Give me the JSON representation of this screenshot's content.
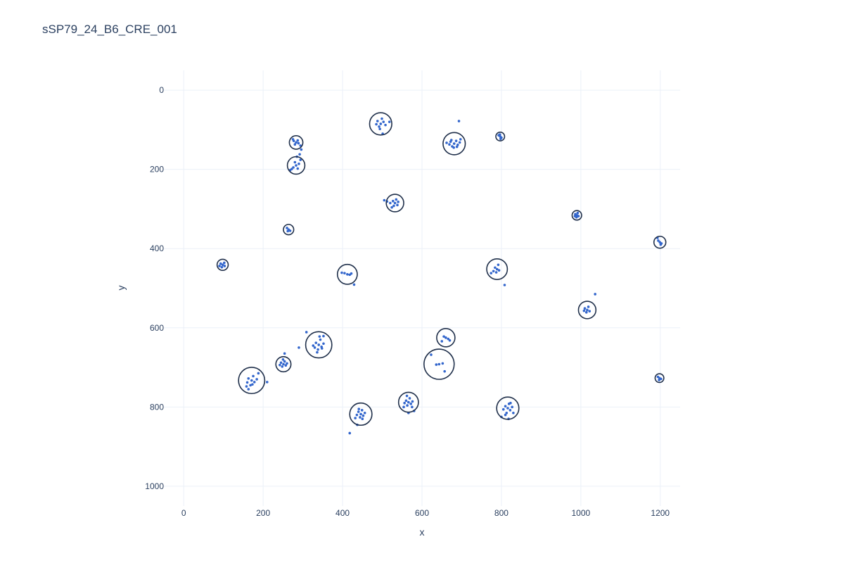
{
  "chart_data": {
    "type": "scatter",
    "title": "sSP79_24_B6_CRE_001",
    "xlabel": "x",
    "ylabel": "y",
    "xlim": [
      -50,
      1250
    ],
    "ylim": [
      1050,
      -50
    ],
    "y_reversed": true,
    "x_ticks": [
      0,
      200,
      400,
      600,
      800,
      1000,
      1200
    ],
    "y_ticks": [
      0,
      200,
      400,
      600,
      800,
      1000
    ],
    "grid": true,
    "legend": "none",
    "point_color": "#3366cc",
    "circle_color": "#1f2f4a",
    "clusters": [
      {
        "x": 496,
        "y": 85,
        "r": 28,
        "points": [
          [
            496,
            85
          ],
          [
            488,
            78
          ],
          [
            503,
            80
          ],
          [
            492,
            92
          ],
          [
            499,
            72
          ],
          [
            485,
            86
          ],
          [
            508,
            88
          ],
          [
            494,
            98
          ],
          [
            501,
            110
          ],
          [
            518,
            80
          ]
        ]
      },
      {
        "x": 681,
        "y": 135,
        "r": 28,
        "points": [
          [
            681,
            135
          ],
          [
            672,
            130
          ],
          [
            690,
            138
          ],
          [
            676,
            142
          ],
          [
            686,
            128
          ],
          [
            669,
            137
          ],
          [
            695,
            132
          ],
          [
            680,
            145
          ],
          [
            688,
            143
          ],
          [
            674,
            126
          ],
          [
            662,
            133
          ],
          [
            697,
            124
          ],
          [
            693,
            78
          ]
        ]
      },
      {
        "x": 283,
        "y": 132,
        "r": 17,
        "points": [
          [
            283,
            132
          ],
          [
            277,
            128
          ],
          [
            289,
            134
          ],
          [
            280,
            137
          ],
          [
            287,
            127
          ],
          [
            294,
            140
          ],
          [
            275,
            124
          ]
        ]
      },
      {
        "x": 283,
        "y": 190,
        "r": 22,
        "points": [
          [
            283,
            190
          ],
          [
            276,
            195
          ],
          [
            290,
            186
          ],
          [
            280,
            182
          ],
          [
            287,
            198
          ],
          [
            272,
            199
          ],
          [
            294,
            176
          ],
          [
            285,
            168
          ],
          [
            292,
            162
          ],
          [
            296,
            150
          ],
          [
            268,
            202
          ]
        ]
      },
      {
        "x": 532,
        "y": 285,
        "r": 22,
        "points": [
          [
            532,
            285
          ],
          [
            527,
            280
          ],
          [
            538,
            290
          ],
          [
            529,
            292
          ],
          [
            540,
            282
          ],
          [
            520,
            285
          ],
          [
            512,
            281
          ],
          [
            524,
            296
          ],
          [
            535,
            276
          ],
          [
            505,
            278
          ]
        ]
      },
      {
        "x": 264,
        "y": 352,
        "r": 13,
        "points": [
          [
            264,
            352
          ],
          [
            260,
            348
          ],
          [
            268,
            355
          ],
          [
            262,
            356
          ]
        ]
      },
      {
        "x": 98,
        "y": 441,
        "r": 14,
        "points": [
          [
            98,
            441
          ],
          [
            93,
            438
          ],
          [
            103,
            444
          ],
          [
            96,
            447
          ],
          [
            102,
            436
          ],
          [
            90,
            444
          ]
        ]
      },
      {
        "x": 412,
        "y": 465,
        "r": 25,
        "points": [
          [
            412,
            465
          ],
          [
            405,
            462
          ],
          [
            418,
            466
          ],
          [
            398,
            461
          ],
          [
            422,
            463
          ],
          [
            429,
            491
          ]
        ]
      },
      {
        "x": 789,
        "y": 452,
        "r": 26,
        "points": [
          [
            789,
            452
          ],
          [
            784,
            448
          ],
          [
            794,
            455
          ],
          [
            787,
            460
          ],
          [
            780,
            457
          ],
          [
            792,
            441
          ],
          [
            774,
            462
          ],
          [
            808,
            492
          ]
        ]
      },
      {
        "x": 797,
        "y": 117,
        "r": 11,
        "points": [
          [
            797,
            117
          ],
          [
            793,
            114
          ],
          [
            800,
            120
          ],
          [
            796,
            112
          ],
          [
            798,
            123
          ]
        ]
      },
      {
        "x": 990,
        "y": 316,
        "r": 12,
        "points": [
          [
            990,
            316
          ],
          [
            986,
            313
          ],
          [
            994,
            318
          ],
          [
            989,
            321
          ],
          [
            992,
            310
          ],
          [
            985,
            318
          ]
        ]
      },
      {
        "x": 1199,
        "y": 384,
        "r": 15,
        "points": [
          [
            1199,
            384
          ],
          [
            1195,
            380
          ],
          [
            1203,
            387
          ],
          [
            1193,
            373
          ],
          [
            1201,
            390
          ]
        ]
      },
      {
        "x": 1016,
        "y": 555,
        "r": 22,
        "points": [
          [
            1016,
            555
          ],
          [
            1010,
            551
          ],
          [
            1022,
            558
          ],
          [
            1014,
            561
          ],
          [
            1019,
            547
          ],
          [
            1008,
            557
          ],
          [
            1036,
            515
          ]
        ]
      },
      {
        "x": 340,
        "y": 643,
        "r": 33,
        "points": [
          [
            340,
            643
          ],
          [
            333,
            638
          ],
          [
            347,
            648
          ],
          [
            338,
            655
          ],
          [
            344,
            630
          ],
          [
            330,
            650
          ],
          [
            352,
            640
          ],
          [
            336,
            662
          ],
          [
            348,
            652
          ],
          [
            326,
            645
          ],
          [
            342,
            622
          ],
          [
            309,
            611
          ],
          [
            290,
            650
          ],
          [
            352,
            621
          ]
        ]
      },
      {
        "x": 251,
        "y": 692,
        "r": 19,
        "points": [
          [
            251,
            692
          ],
          [
            245,
            688
          ],
          [
            257,
            695
          ],
          [
            248,
            698
          ],
          [
            254,
            685
          ],
          [
            242,
            694
          ],
          [
            260,
            690
          ],
          [
            250,
            680
          ],
          [
            254,
            665
          ]
        ]
      },
      {
        "x": 171,
        "y": 733,
        "r": 33,
        "points": [
          [
            171,
            733
          ],
          [
            163,
            728
          ],
          [
            178,
            737
          ],
          [
            168,
            745
          ],
          [
            175,
            722
          ],
          [
            160,
            738
          ],
          [
            184,
            730
          ],
          [
            158,
            748
          ],
          [
            188,
            715
          ],
          [
            163,
            755
          ],
          [
            210,
            737
          ],
          [
            173,
            743
          ]
        ]
      },
      {
        "x": 660,
        "y": 625,
        "r": 23,
        "points": [
          [
            660,
            625
          ],
          [
            655,
            622
          ],
          [
            666,
            628
          ],
          [
            650,
            634
          ],
          [
            670,
            632
          ]
        ]
      },
      {
        "x": 643,
        "y": 692,
        "r": 38,
        "points": [
          [
            643,
            692
          ],
          [
            636,
            693
          ],
          [
            652,
            690
          ],
          [
            623,
            668
          ],
          [
            657,
            710
          ]
        ]
      },
      {
        "x": 446,
        "y": 818,
        "r": 28,
        "points": [
          [
            446,
            818
          ],
          [
            440,
            812
          ],
          [
            452,
            822
          ],
          [
            444,
            826
          ],
          [
            449,
            808
          ],
          [
            436,
            820
          ],
          [
            456,
            815
          ],
          [
            441,
            805
          ],
          [
            432,
            828
          ],
          [
            437,
            845
          ],
          [
            418,
            866
          ],
          [
            450,
            830
          ]
        ]
      },
      {
        "x": 566,
        "y": 788,
        "r": 25,
        "points": [
          [
            566,
            788
          ],
          [
            560,
            784
          ],
          [
            572,
            792
          ],
          [
            563,
            796
          ],
          [
            569,
            778
          ],
          [
            556,
            790
          ],
          [
            576,
            786
          ],
          [
            562,
            772
          ],
          [
            580,
            810
          ],
          [
            566,
            815
          ],
          [
            554,
            800
          ],
          [
            575,
            800
          ]
        ]
      },
      {
        "x": 816,
        "y": 803,
        "r": 28,
        "points": [
          [
            816,
            803
          ],
          [
            810,
            798
          ],
          [
            822,
            808
          ],
          [
            813,
            815
          ],
          [
            819,
            792
          ],
          [
            805,
            806
          ],
          [
            827,
            800
          ],
          [
            810,
            820
          ],
          [
            823,
            790
          ],
          [
            800,
            825
          ],
          [
            830,
            815
          ],
          [
            818,
            830
          ]
        ]
      },
      {
        "x": 1198,
        "y": 727,
        "r": 11,
        "points": [
          [
            1198,
            727
          ],
          [
            1194,
            724
          ],
          [
            1202,
            729
          ],
          [
            1197,
            732
          ]
        ]
      }
    ]
  }
}
